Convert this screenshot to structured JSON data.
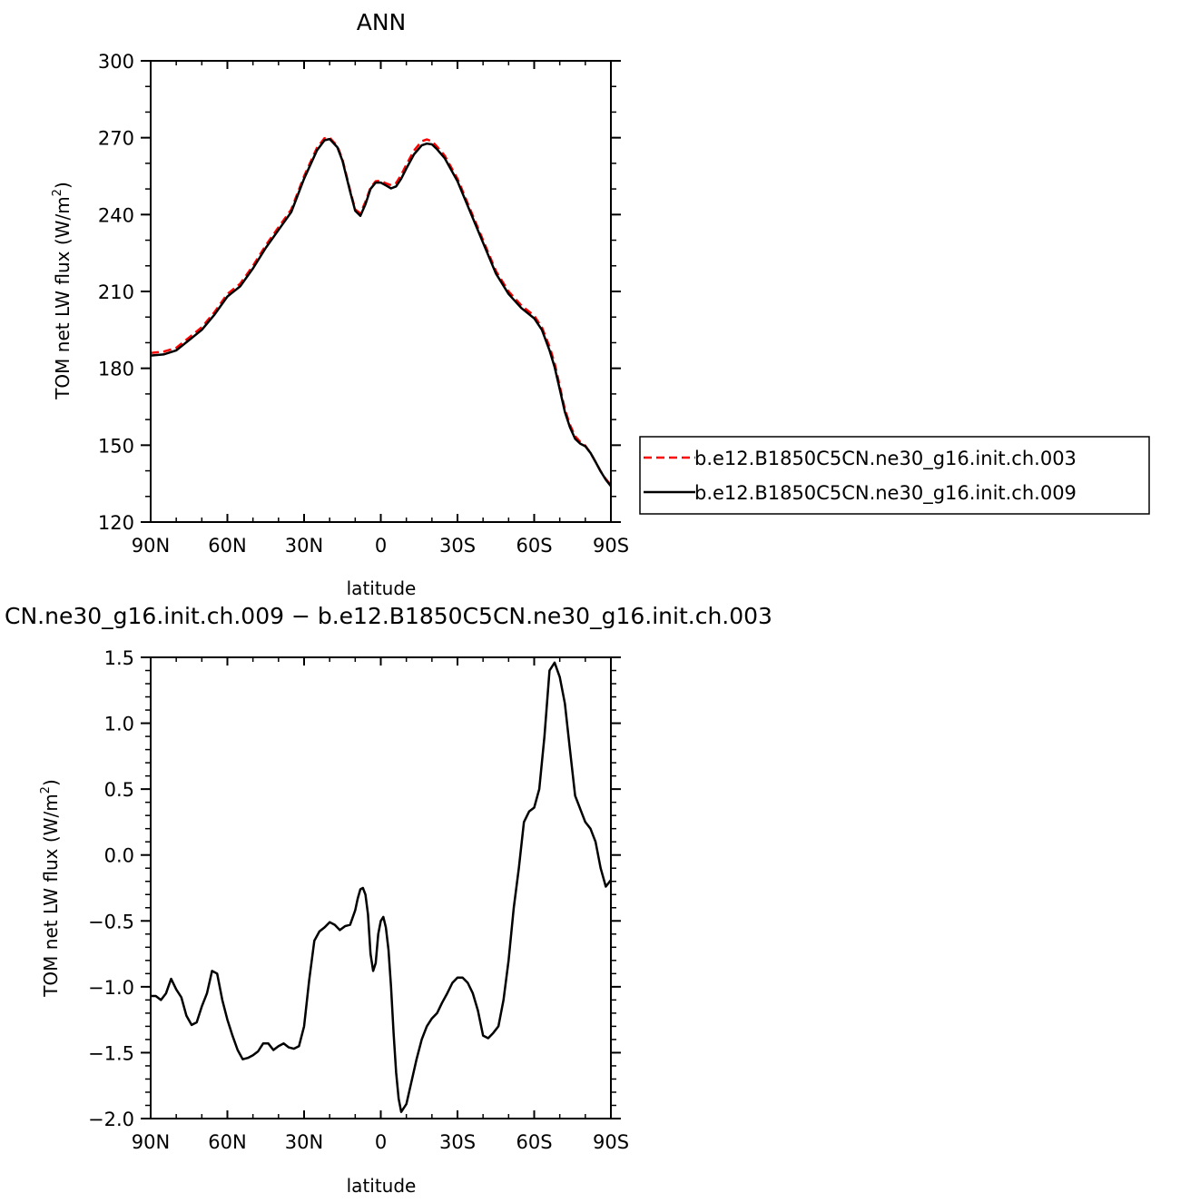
{
  "chart_data": [
    {
      "type": "line",
      "title": "ANN",
      "xlabel": "latitude",
      "ylabel": "TOM net LW flux (W/m²)",
      "ylabel_main": "TOM net LW flux (W/m",
      "ylabel_sup": "2",
      "ylabel_close": ")",
      "xlim": [
        90,
        -90
      ],
      "ylim": [
        120,
        300
      ],
      "xticks": [
        90,
        60,
        30,
        0,
        -30,
        -60,
        -90
      ],
      "xtick_labels": [
        "90N",
        "60N",
        "30N",
        "0",
        "30S",
        "60S",
        "90S"
      ],
      "yticks": [
        120,
        150,
        180,
        210,
        240,
        270,
        300
      ],
      "ytick_labels": [
        "120",
        "150",
        "180",
        "210",
        "240",
        "270",
        "300"
      ],
      "legend_position": "right",
      "x": [
        90,
        85,
        80,
        75,
        70,
        65,
        60,
        55,
        50,
        45,
        40,
        35,
        30,
        25,
        22,
        20,
        17,
        15,
        12,
        10,
        8,
        6,
        4,
        2,
        0,
        -2,
        -4,
        -6,
        -8,
        -10,
        -13,
        -16,
        -18,
        -20,
        -22,
        -25,
        -30,
        -35,
        -40,
        -45,
        -50,
        -55,
        -60,
        -63,
        -66,
        -68,
        -70,
        -72,
        -74,
        -76,
        -78,
        -80,
        -82,
        -84,
        -86,
        -88,
        -90
      ],
      "series": [
        {
          "name": "b.e12.B1850C5CN.ne30_g16.init.ch.003",
          "color": "#ff0000",
          "dash": "dashed",
          "values": [
            186,
            186.5,
            188,
            192,
            196,
            202,
            209,
            213,
            220,
            228,
            235,
            242,
            255,
            266,
            269.8,
            270,
            266.8,
            261.5,
            249.5,
            242,
            240.5,
            245,
            250.5,
            253,
            253.2,
            252.2,
            251.5,
            252.3,
            255.5,
            259.5,
            265,
            268.6,
            269.3,
            268.6,
            266.5,
            263,
            254,
            242,
            230,
            218,
            210,
            204.5,
            200.5,
            196,
            188.5,
            182,
            173,
            164,
            158,
            153.5,
            151.3,
            149.8,
            147,
            143.5,
            139.8,
            136.8,
            134.5
          ]
        },
        {
          "name": "b.e12.B1850C5CN.ne30_g16.init.ch.009",
          "color": "#000000",
          "dash": "solid",
          "values": [
            185,
            185.4,
            187,
            191,
            195,
            201,
            208,
            212,
            219,
            227,
            234,
            241,
            254,
            265,
            269,
            269.5,
            266.3,
            261,
            249,
            241.5,
            239.5,
            244,
            250,
            252.5,
            252.5,
            251.4,
            250.2,
            251,
            254,
            258,
            263.5,
            267,
            267.7,
            267.4,
            265.5,
            262,
            253,
            241,
            229,
            217,
            209,
            203.5,
            199.5,
            195,
            187,
            180.5,
            171.8,
            163,
            157,
            152.5,
            150.6,
            149.6,
            147,
            143.5,
            139.8,
            136.5,
            134
          ]
        }
      ]
    },
    {
      "type": "line",
      "title": "CN.ne30_g16.init.ch.009 − b.e12.B1850C5CN.ne30_g16.init.ch.003",
      "xlabel": "latitude",
      "ylabel": "TOM net LW flux (W/m²)",
      "ylabel_main": "TOM net LW flux (W/m",
      "ylabel_sup": "2",
      "ylabel_close": ")",
      "xlim": [
        90,
        -90
      ],
      "ylim": [
        -2.0,
        1.5
      ],
      "xticks": [
        90,
        60,
        30,
        0,
        -30,
        -60,
        -90
      ],
      "xtick_labels": [
        "90N",
        "60N",
        "30N",
        "0",
        "30S",
        "60S",
        "90S"
      ],
      "yticks": [
        -2.0,
        -1.5,
        -1.0,
        -0.5,
        0.0,
        0.5,
        1.0,
        1.5
      ],
      "ytick_labels": [
        "−2.0",
        "−1.5",
        "−1.0",
        "−0.5",
        "0.0",
        "0.5",
        "1.0",
        "1.5"
      ],
      "x": [
        90,
        88,
        86,
        84,
        82,
        80,
        78,
        76,
        74,
        72,
        70,
        68,
        66,
        64,
        62,
        60,
        58,
        56,
        54,
        52,
        50,
        48,
        46,
        44,
        42,
        40,
        38,
        36,
        34,
        32,
        30,
        28,
        26,
        24,
        22,
        20,
        18,
        16,
        14,
        12,
        10,
        9,
        8,
        7,
        6,
        5,
        4,
        3,
        2,
        1,
        0,
        -1,
        -2,
        -3,
        -4,
        -5,
        -6,
        -7,
        -8,
        -10,
        -12,
        -14,
        -16,
        -18,
        -20,
        -22,
        -24,
        -26,
        -28,
        -30,
        -32,
        -34,
        -36,
        -38,
        -40,
        -42,
        -44,
        -46,
        -48,
        -50,
        -52,
        -54,
        -56,
        -58,
        -60,
        -62,
        -64,
        -66,
        -68,
        -70,
        -72,
        -74,
        -76,
        -78,
        -80,
        -82,
        -84,
        -86,
        -88,
        -90
      ],
      "series": [
        {
          "name": "",
          "color": "#000000",
          "dash": "solid",
          "values": [
            -1.07,
            -1.07,
            -1.1,
            -1.05,
            -0.94,
            -1.02,
            -1.08,
            -1.22,
            -1.29,
            -1.27,
            -1.15,
            -1.05,
            -0.88,
            -0.9,
            -1.1,
            -1.25,
            -1.37,
            -1.48,
            -1.55,
            -1.54,
            -1.52,
            -1.49,
            -1.43,
            -1.43,
            -1.48,
            -1.45,
            -1.43,
            -1.46,
            -1.47,
            -1.45,
            -1.3,
            -0.95,
            -0.65,
            -0.58,
            -0.55,
            -0.51,
            -0.53,
            -0.57,
            -0.54,
            -0.53,
            -0.42,
            -0.33,
            -0.26,
            -0.25,
            -0.3,
            -0.45,
            -0.75,
            -0.88,
            -0.82,
            -0.6,
            -0.5,
            -0.47,
            -0.55,
            -0.72,
            -1.0,
            -1.35,
            -1.65,
            -1.85,
            -1.95,
            -1.89,
            -1.72,
            -1.55,
            -1.4,
            -1.3,
            -1.24,
            -1.2,
            -1.12,
            -1.05,
            -0.97,
            -0.93,
            -0.93,
            -0.97,
            -1.05,
            -1.18,
            -1.37,
            -1.39,
            -1.35,
            -1.3,
            -1.1,
            -0.8,
            -0.4,
            -0.1,
            0.25,
            0.33,
            0.36,
            0.5,
            0.9,
            1.4,
            1.46,
            1.35,
            1.15,
            0.8,
            0.45,
            0.35,
            0.25,
            0.2,
            0.1,
            -0.1,
            -0.24,
            -0.19
          ]
        }
      ]
    }
  ],
  "legend": {
    "items": [
      {
        "label": "b.e12.B1850C5CN.ne30_g16.init.ch.003",
        "color": "#ff0000",
        "dash": "dashed"
      },
      {
        "label": "b.e12.B1850C5CN.ne30_g16.init.ch.009",
        "color": "#000000",
        "dash": "solid"
      }
    ]
  }
}
